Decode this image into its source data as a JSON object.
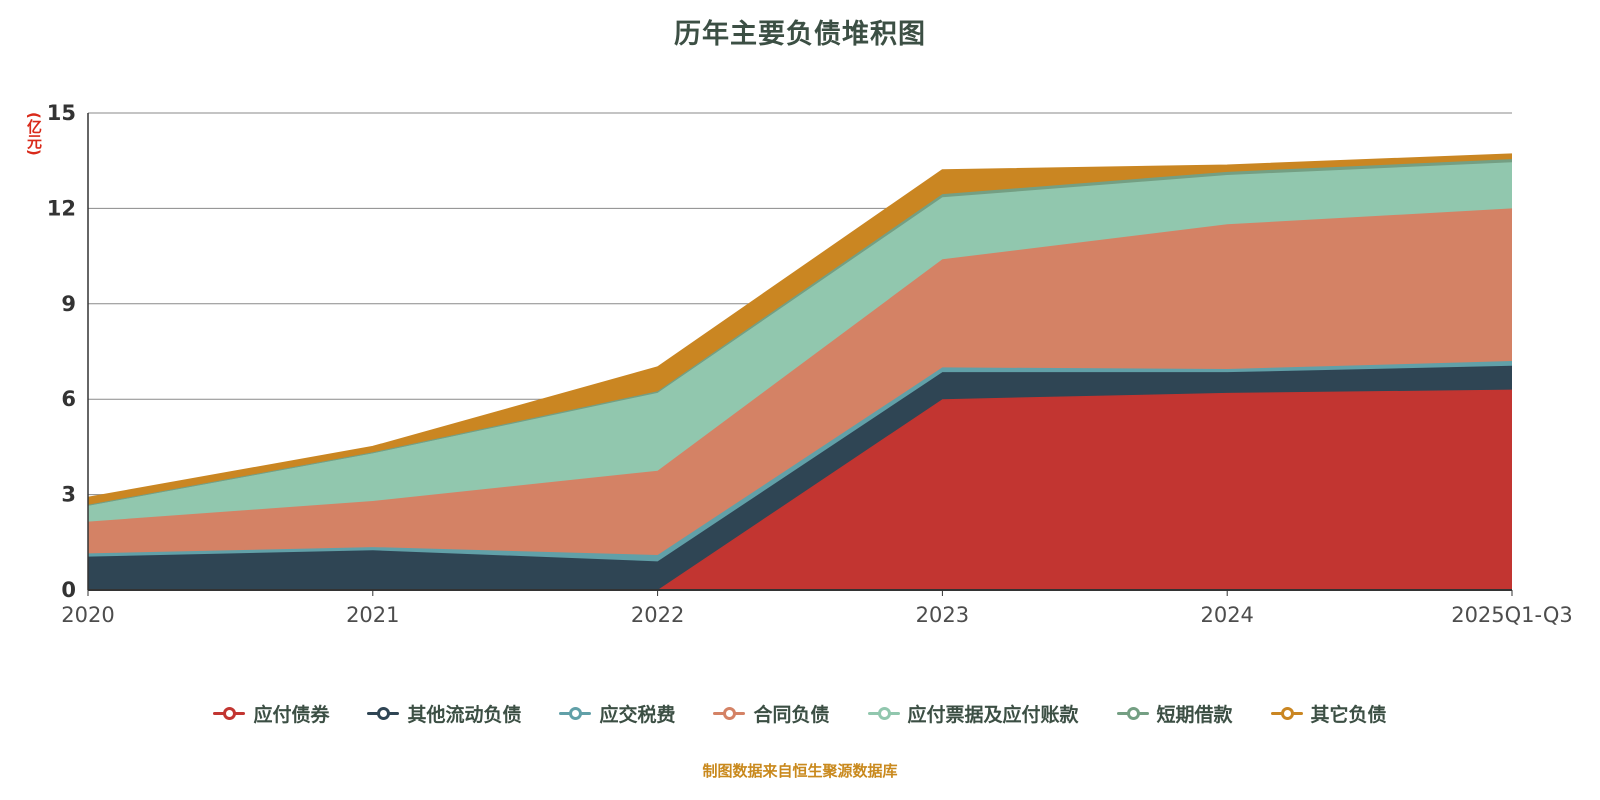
{
  "title": "历年主要负债堆积图",
  "y_axis_unit": "(亿元)",
  "footer": "制图数据来自恒生聚源数据库",
  "colors": {
    "title": "#3c4f44",
    "tick_label": "#333333",
    "axis_label": "#4d4d4d",
    "unit_label": "#d92a1a",
    "footer": "#c9891d",
    "gridline": "#8a8a8a",
    "axis_line": "#333333",
    "background": "#ffffff"
  },
  "chart_data": {
    "type": "area",
    "stacked": true,
    "title": "历年主要负债堆积图",
    "ylabel": "(亿元)",
    "xlabel": "",
    "grid": true,
    "legend_position": "bottom",
    "categories": [
      "2020",
      "2021",
      "2022",
      "2023",
      "2024",
      "2025Q1-Q3"
    ],
    "yticks": [
      0,
      3,
      6,
      9,
      12,
      15
    ],
    "ylim": [
      0,
      15
    ],
    "series": [
      {
        "name": "应付债券",
        "color": "#c23531",
        "values": [
          0,
          0,
          0,
          6.0,
          6.2,
          6.3
        ]
      },
      {
        "name": "其他流动负债",
        "color": "#2f4554",
        "values": [
          1.05,
          1.25,
          0.9,
          0.85,
          0.65,
          0.75
        ]
      },
      {
        "name": "应交税费",
        "color": "#61a0a8",
        "values": [
          0.1,
          0.1,
          0.2,
          0.15,
          0.1,
          0.15
        ]
      },
      {
        "name": "合同负债",
        "color": "#d48265",
        "values": [
          1.0,
          1.45,
          2.65,
          3.4,
          4.55,
          4.8
        ]
      },
      {
        "name": "应付票据及应付账款",
        "color": "#91c7ae",
        "values": [
          0.5,
          1.5,
          2.45,
          1.95,
          1.55,
          1.45
        ]
      },
      {
        "name": "短期借款",
        "color": "#749f83",
        "values": [
          0.03,
          0.03,
          0.05,
          0.1,
          0.1,
          0.1
        ]
      },
      {
        "name": "其它负债",
        "color": "#ca8622",
        "values": [
          0.22,
          0.17,
          0.75,
          0.75,
          0.2,
          0.15
        ]
      }
    ]
  }
}
